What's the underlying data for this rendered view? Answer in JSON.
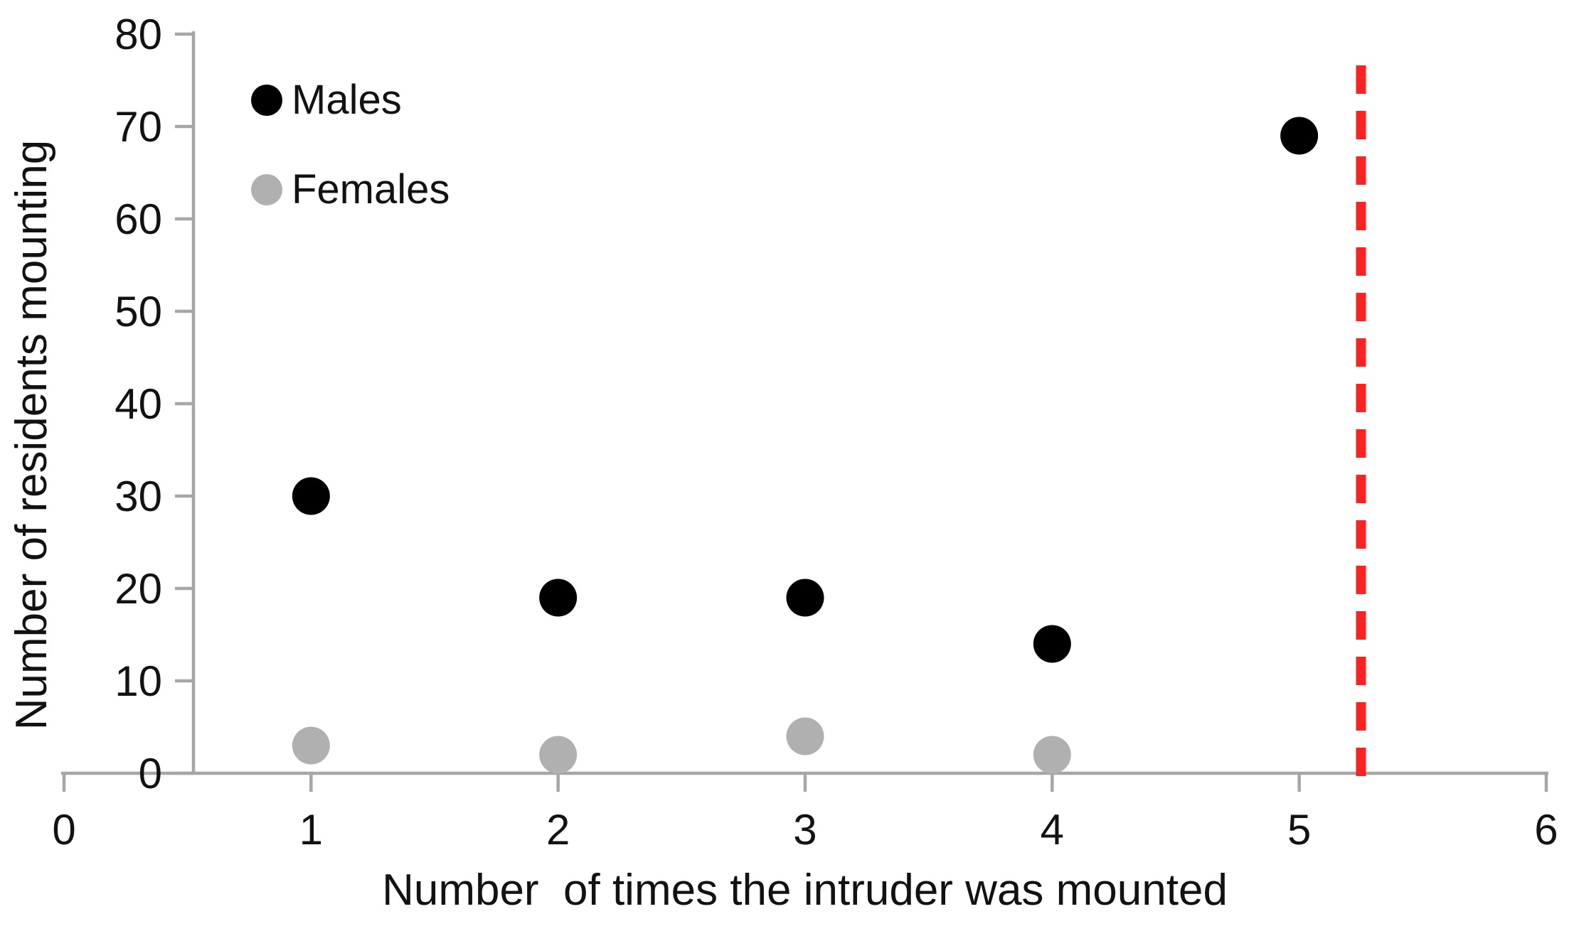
{
  "chart_data": {
    "type": "scatter",
    "title": "",
    "xlabel": "Number  of times the intruder was mounted",
    "ylabel": "Number of residents mounting",
    "xlim": [
      0,
      6
    ],
    "ylim": [
      0,
      80
    ],
    "x_ticks": [
      0,
      1,
      2,
      3,
      4,
      5,
      6
    ],
    "y_ticks": [
      0,
      10,
      20,
      30,
      40,
      50,
      60,
      70,
      80
    ],
    "grid": false,
    "legend_position": "inside-top-left",
    "series": [
      {
        "name": "Males",
        "color": "#000000",
        "points": [
          {
            "x": 1,
            "y": 30
          },
          {
            "x": 2,
            "y": 19
          },
          {
            "x": 3,
            "y": 19
          },
          {
            "x": 4,
            "y": 14
          },
          {
            "x": 5,
            "y": 69
          }
        ]
      },
      {
        "name": "Females",
        "color": "#b0b0b0",
        "points": [
          {
            "x": 1,
            "y": 3
          },
          {
            "x": 2,
            "y": 2
          },
          {
            "x": 3,
            "y": 4
          },
          {
            "x": 4,
            "y": 2
          }
        ]
      }
    ],
    "reference_line": {
      "type": "vertical-dashed",
      "x": 5.25,
      "color": "#fa2222"
    },
    "axis_color": "#a6a6a6",
    "text_color": "#121212"
  }
}
